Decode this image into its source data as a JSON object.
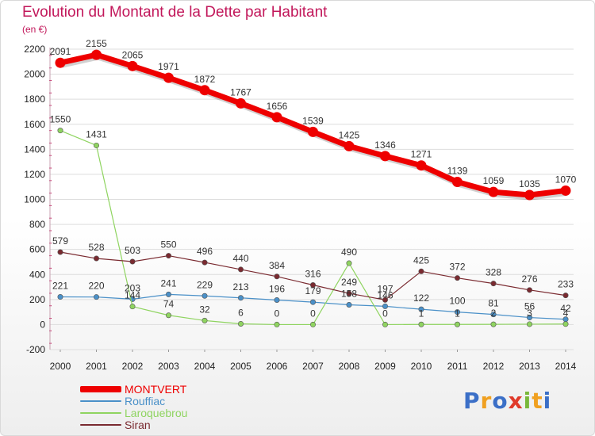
{
  "title": "Evolution du Montant de la Dette par Habitant",
  "subtitle": "(en €)",
  "colors": {
    "title": "#c2185b",
    "axis_text": "#222222",
    "grid": "#dddddd",
    "tick": "#c2185b"
  },
  "logo": {
    "text": "Proxiti",
    "letters": [
      {
        "ch": "P",
        "color": "#3b6fc7"
      },
      {
        "ch": "r",
        "color": "#f0a020"
      },
      {
        "ch": "o",
        "color": "#3b6fc7"
      },
      {
        "ch": "x",
        "color": "#e03a2a"
      },
      {
        "ch": "i",
        "color": "#79b83a"
      },
      {
        "ch": "t",
        "color": "#f0a020"
      },
      {
        "ch": "i",
        "color": "#3b6fc7"
      }
    ]
  },
  "chart_data": {
    "type": "line",
    "title": "Evolution du Montant de la Dette par Habitant",
    "subtitle": "(en €)",
    "xlabel": "",
    "ylabel": "",
    "categories": [
      "2000",
      "2001",
      "2002",
      "2003",
      "2004",
      "2005",
      "2006",
      "2007",
      "2008",
      "2009",
      "2010",
      "2011",
      "2012",
      "2013",
      "2014"
    ],
    "ylim": [
      -200,
      2200
    ],
    "yticks": [
      -200,
      0,
      200,
      400,
      600,
      800,
      1000,
      1200,
      1400,
      1600,
      1800,
      2000,
      2200
    ],
    "grid": true,
    "legend_position": "bottom-left",
    "series": [
      {
        "name": "MONTVERT",
        "color": "#ee0000",
        "values": [
          2091,
          2155,
          2065,
          1971,
          1872,
          1767,
          1656,
          1539,
          1425,
          1346,
          1271,
          1139,
          1059,
          1035,
          1070
        ]
      },
      {
        "name": "Rouffiac",
        "color": "#4a90c8",
        "values": [
          221,
          220,
          203,
          241,
          229,
          213,
          196,
          179,
          158,
          146,
          122,
          100,
          81,
          56,
          42
        ]
      },
      {
        "name": "Laroquebrou",
        "color": "#8fd460",
        "values": [
          1550,
          1431,
          144,
          74,
          32,
          6,
          0,
          0,
          490,
          0,
          1,
          1,
          2,
          3,
          4
        ]
      },
      {
        "name": "Siran",
        "color": "#7a2a30",
        "values": [
          579,
          528,
          503,
          550,
          496,
          440,
          384,
          316,
          249,
          197,
          425,
          372,
          328,
          276,
          233
        ]
      }
    ]
  }
}
